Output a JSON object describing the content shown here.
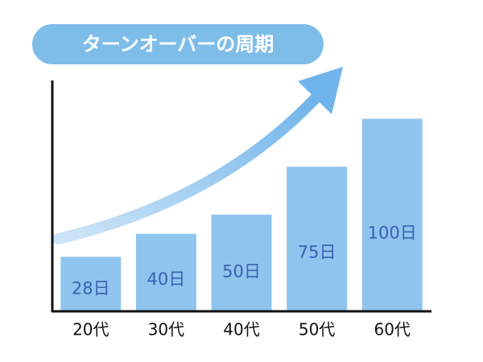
{
  "chart_data": {
    "type": "bar",
    "title": "ターンオーバーの周期",
    "categories": [
      "20代",
      "30代",
      "40代",
      "50代",
      "60代"
    ],
    "values": [
      28,
      40,
      50,
      75,
      100
    ],
    "value_labels": [
      "28日",
      "40日",
      "50日",
      "75日",
      "100日"
    ],
    "color": "#8ec4ee",
    "ylim": [
      0,
      120
    ]
  }
}
